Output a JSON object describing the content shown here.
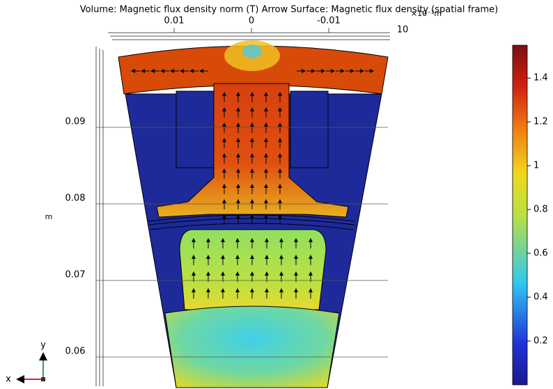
{
  "chart_data": {
    "type": "field",
    "title": "Volume: Magnetic flux density norm (T)  Arrow Surface: Magnetic flux density (spatial frame)",
    "xticks": [
      0.01,
      0,
      -0.01
    ],
    "x_extra_label": "10",
    "x_unit": "×10⁻³m",
    "yticks": [
      0.09,
      0.08,
      0.07,
      0.06
    ],
    "ylabel": "m",
    "colorbar": {
      "clim": [
        0,
        1.55
      ],
      "ticks": [
        0.2,
        0.4,
        0.6,
        0.8,
        1,
        1.2,
        1.4
      ]
    },
    "triad": {
      "x": "x",
      "y": "y"
    }
  }
}
